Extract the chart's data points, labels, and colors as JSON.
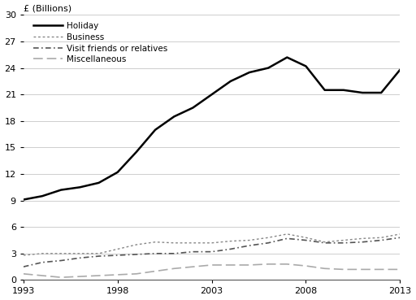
{
  "years": [
    1993,
    1994,
    1995,
    1996,
    1997,
    1998,
    1999,
    2000,
    2001,
    2002,
    2003,
    2004,
    2005,
    2006,
    2007,
    2008,
    2009,
    2010,
    2011,
    2012,
    2013
  ],
  "holiday": [
    9.1,
    9.5,
    10.2,
    10.5,
    11.0,
    12.2,
    14.5,
    17.0,
    18.5,
    19.5,
    21.0,
    22.5,
    23.5,
    24.0,
    25.2,
    24.2,
    21.5,
    21.5,
    21.2,
    21.2,
    23.8
  ],
  "business": [
    2.8,
    3.0,
    3.0,
    3.0,
    3.0,
    3.5,
    4.0,
    4.3,
    4.2,
    4.2,
    4.2,
    4.4,
    4.5,
    4.8,
    5.2,
    4.8,
    4.3,
    4.5,
    4.7,
    4.8,
    5.2
  ],
  "visit_friends": [
    1.5,
    2.0,
    2.2,
    2.5,
    2.7,
    2.8,
    2.9,
    3.0,
    3.0,
    3.2,
    3.2,
    3.5,
    3.9,
    4.2,
    4.7,
    4.5,
    4.2,
    4.2,
    4.3,
    4.5,
    4.8
  ],
  "misc": [
    0.7,
    0.5,
    0.3,
    0.4,
    0.5,
    0.6,
    0.7,
    1.0,
    1.3,
    1.5,
    1.7,
    1.7,
    1.7,
    1.8,
    1.8,
    1.6,
    1.3,
    1.2,
    1.2,
    1.2,
    1.2
  ],
  "axis_label": "£ (Billions)",
  "ylim": [
    0,
    30
  ],
  "yticks": [
    0,
    3,
    6,
    9,
    12,
    15,
    18,
    21,
    24,
    27,
    30
  ],
  "xticks": [
    1993,
    1998,
    2003,
    2008,
    2013
  ],
  "legend_labels": [
    "Holiday",
    "Business",
    "Visit friends or relatives",
    "Miscellaneous"
  ],
  "line_colors": [
    "#000000",
    "#888888",
    "#555555",
    "#aaaaaa"
  ],
  "background_color": "#ffffff"
}
